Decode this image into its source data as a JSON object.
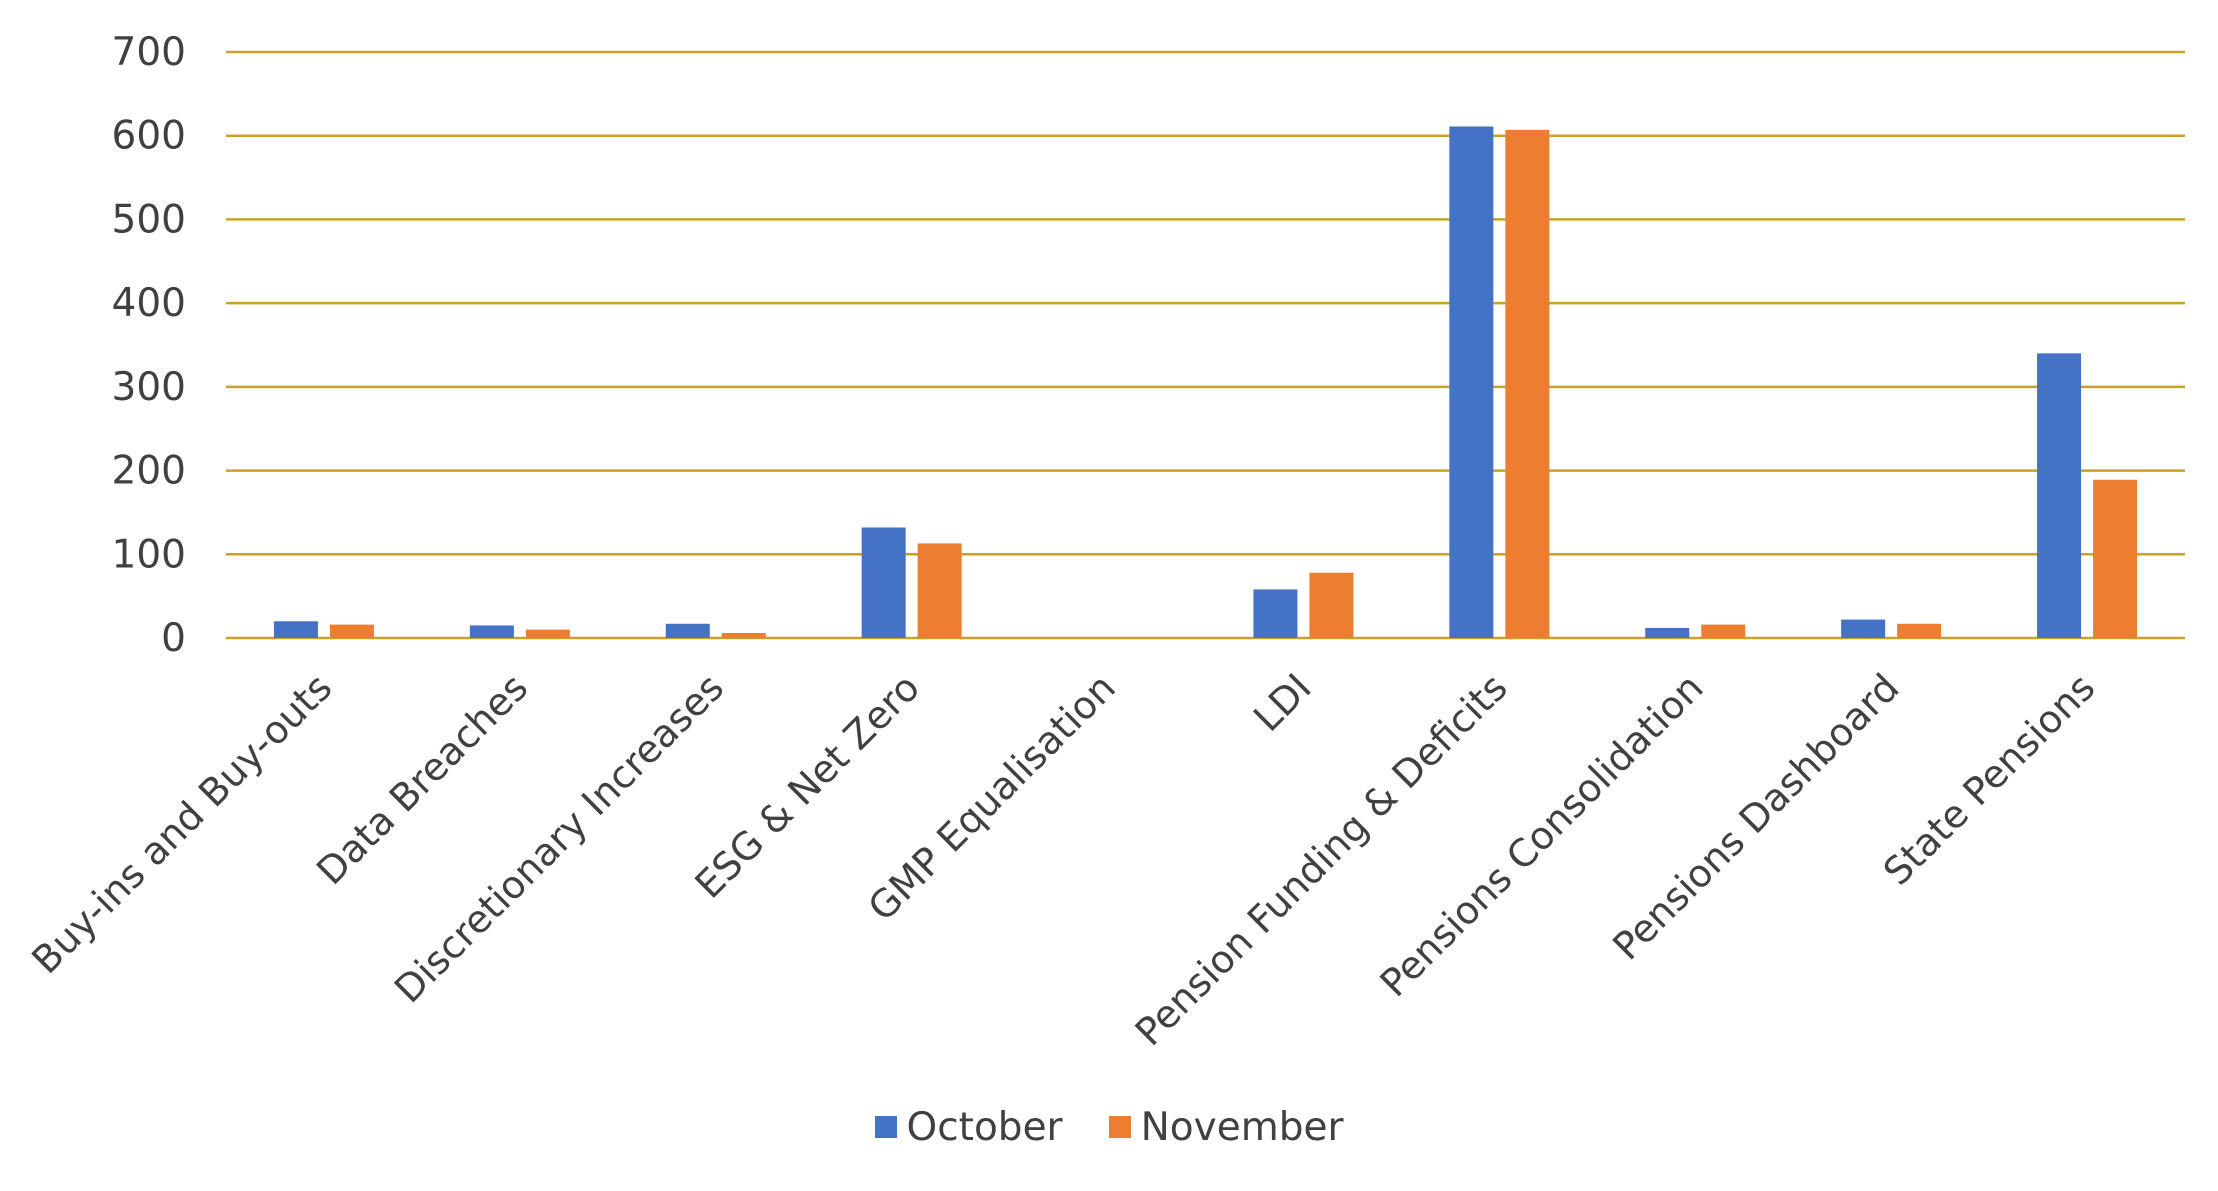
{
  "chart_data": {
    "type": "bar",
    "title": "",
    "xlabel": "",
    "ylabel": "",
    "ylim": [
      0,
      700
    ],
    "yticks": [
      0,
      100,
      200,
      300,
      400,
      500,
      600,
      700
    ],
    "grid": true,
    "legend_position": "bottom",
    "gridline_color": "#C9A227",
    "categories": [
      "Buy-ins and Buy-outs",
      "Data Breaches",
      "Discretionary Increases",
      "ESG & Net Zero",
      "GMP Equalisation",
      "LDI",
      "Pension Funding & Deficits",
      "Pensions Consolidation",
      "Pensions Dashboard",
      "State Pensions"
    ],
    "series": [
      {
        "name": "October",
        "color": "#4472C4",
        "values": [
          20,
          15,
          17,
          132,
          0,
          58,
          611,
          12,
          22,
          340
        ]
      },
      {
        "name": "November",
        "color": "#ED7D31",
        "values": [
          16,
          10,
          6,
          113,
          0,
          78,
          607,
          16,
          17,
          189
        ]
      }
    ]
  }
}
